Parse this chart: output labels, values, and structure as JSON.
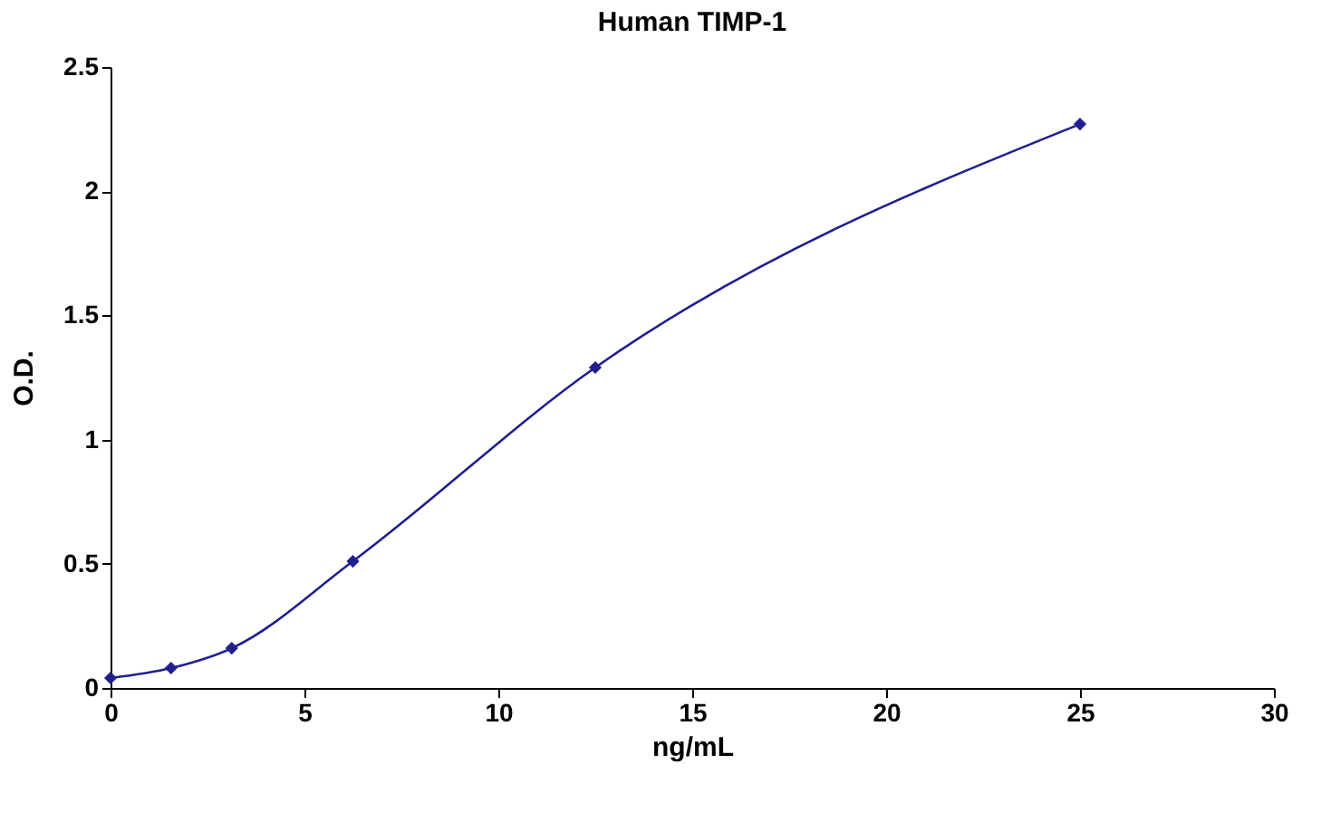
{
  "chart_data": {
    "type": "line",
    "title": "Human TIMP-1",
    "xlabel": "ng/mL",
    "ylabel": "O.D.",
    "x": [
      0,
      1.56,
      3.125,
      6.25,
      12.5,
      25
    ],
    "series": [
      {
        "color": "#1f1f8f",
        "values": [
          0.04,
          0.08,
          0.16,
          0.51,
          1.29,
          2.27
        ]
      }
    ],
    "xlim": [
      0,
      30
    ],
    "xticks": [
      0,
      5,
      10,
      15,
      20,
      25,
      30
    ],
    "ylim": [
      0,
      2.5
    ],
    "yticks": [
      0,
      0.5,
      1,
      1.5,
      2,
      2.5
    ],
    "marker": "diamond",
    "line_style": "solid",
    "grid": false,
    "legend": false
  }
}
